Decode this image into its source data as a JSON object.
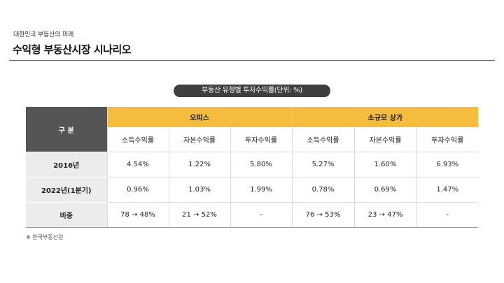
{
  "header": {
    "subtitle": "대한민국 부동산의 미래",
    "title": "수익형 부동산시장 시나리오"
  },
  "table_caption": "부동산 유형별 투자수익률(단위: %)",
  "table": {
    "corner_label": "구 분",
    "groups": [
      "오피스",
      "소규모 상가"
    ],
    "subheaders": [
      "소득수익률",
      "자본수익률",
      "투자수익률",
      "소득수익률",
      "자본수익률",
      "투자수익률"
    ],
    "rows": [
      {
        "label": "2016년",
        "cells": [
          "4.54%",
          "1.22%",
          "5.80%",
          "5.27%",
          "1.60%",
          "6.93%"
        ]
      },
      {
        "label": "2022년(1분기)",
        "cells": [
          "0.96%",
          "1.03%",
          "1.99%",
          "0.78%",
          "0.69%",
          "1.47%"
        ]
      },
      {
        "label": "비중",
        "cells": [
          "78 → 48%",
          "21 → 52%",
          "-",
          "76 → 53%",
          "23 → 47%",
          "-"
        ]
      }
    ]
  },
  "source_note": "※ 한국부동산원",
  "colors": {
    "accent_yellow": "#f6bc3e",
    "dark_header": "#555555",
    "pill_bg": "#3f3f3f",
    "row_header_bg": "#ececec"
  }
}
